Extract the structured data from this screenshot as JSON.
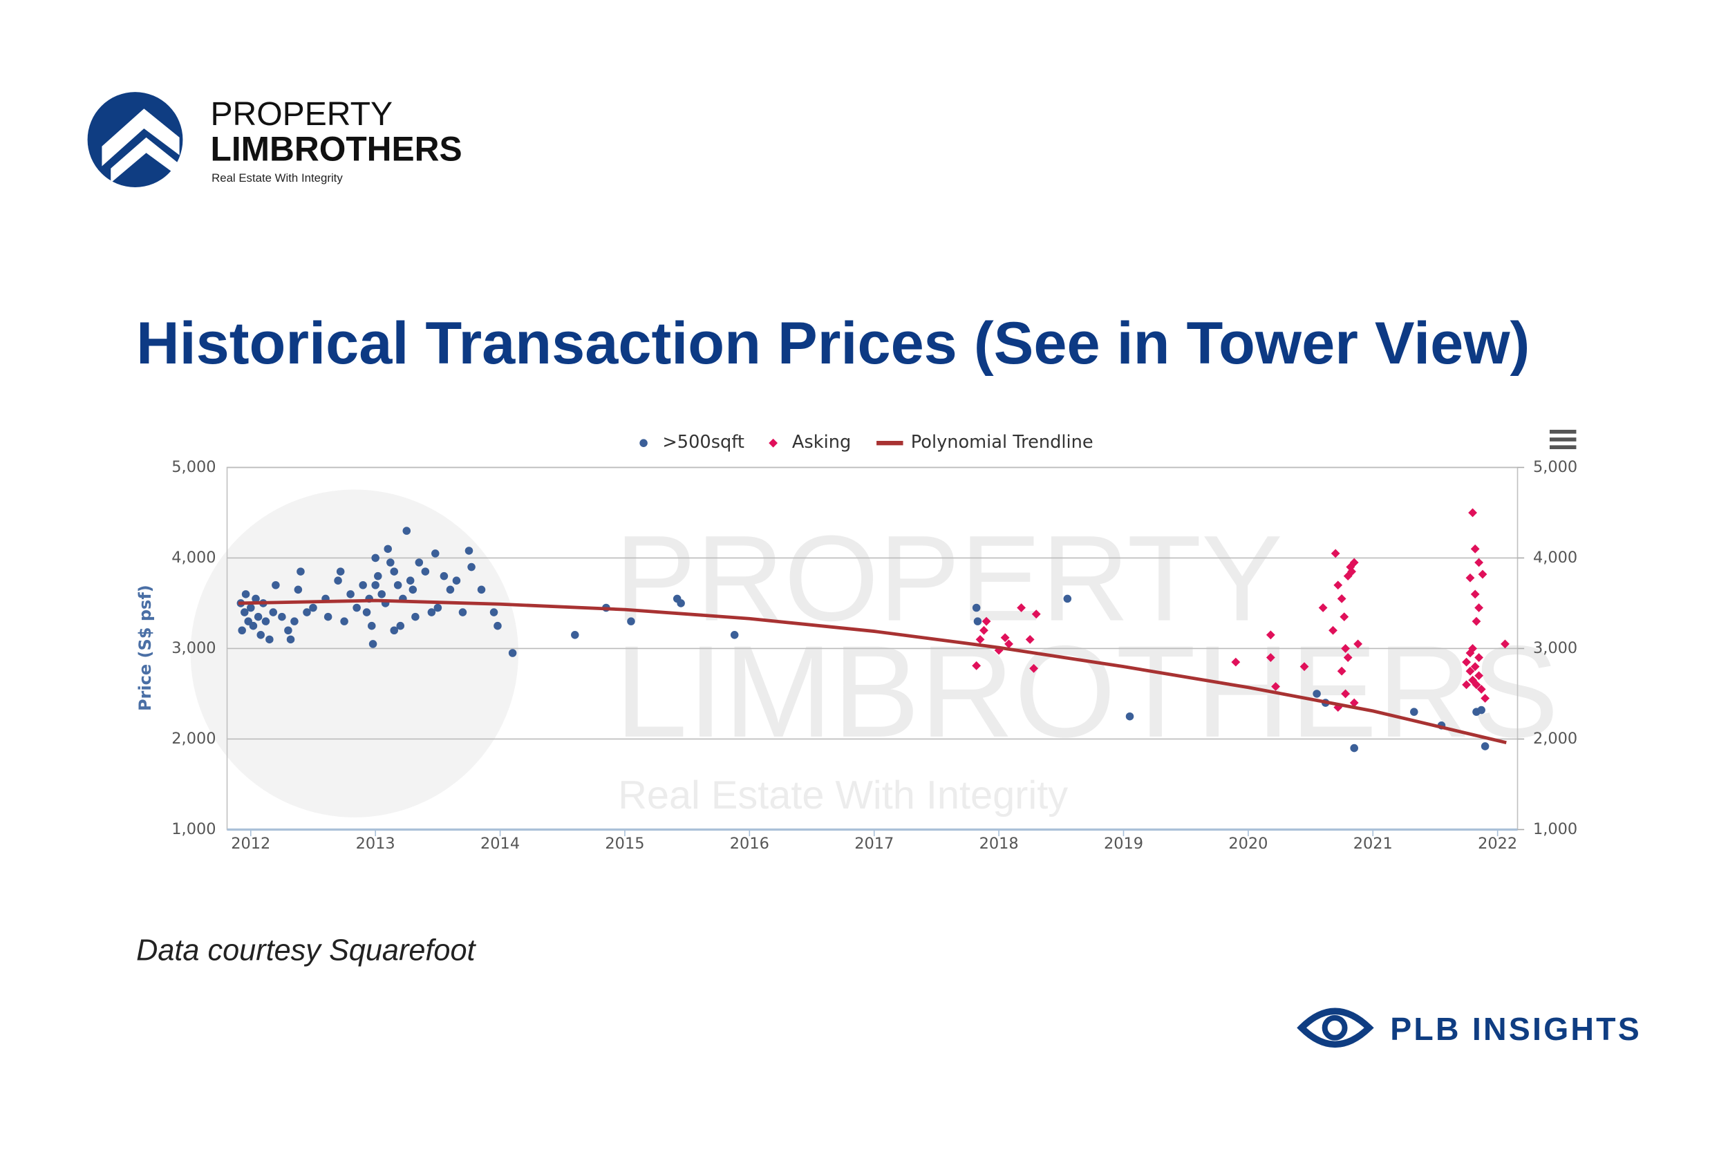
{
  "brand": {
    "line1": "PROPERTY",
    "line2": "LIMBROTHERS",
    "tagline": "Real Estate With Integrity"
  },
  "headline": "Historical Transaction Prices (See in Tower View)",
  "footnote": "Data courtesy Squarefoot",
  "footer": "PLB INSIGHTS",
  "chart_data": {
    "type": "scatter",
    "watermark": {
      "line1": "PROPERTY",
      "line2": "LIMBROTHERS",
      "tagline": "Real Estate With Integrity"
    },
    "ylabel": "Price (S$ psf)",
    "xlim": [
      2011.81,
      2022.16
    ],
    "xticks": [
      2012,
      2013,
      2014,
      2015,
      2016,
      2017,
      2018,
      2019,
      2020,
      2021,
      2022
    ],
    "ylim": [
      1000,
      5000
    ],
    "yticks": [
      {
        "value": 1000,
        "label": "1,000"
      },
      {
        "value": 2000,
        "label": "2,000"
      },
      {
        "value": 3000,
        "label": "3,000"
      },
      {
        "value": 4000,
        "label": "4,000"
      },
      {
        "value": 5000,
        "label": "5,000"
      }
    ],
    "y2lim": [
      1000,
      5000
    ],
    "y2ticks": [
      {
        "value": 1000,
        "label": "1,000"
      },
      {
        "value": 2000,
        "label": "2,000"
      },
      {
        "value": 3000,
        "label": "3,000"
      },
      {
        "value": 4000,
        "label": "4,000"
      },
      {
        "value": 5000,
        "label": "5,000"
      }
    ],
    "grid": true,
    "legend": "top",
    "series": [
      {
        "name": ">500sqft",
        "color": "#3b5f98",
        "marker": "circle",
        "x": [
          2011.92,
          2011.93,
          2011.95,
          2011.96,
          2011.98,
          2012.0,
          2012.02,
          2012.04,
          2012.06,
          2012.08,
          2012.1,
          2012.12,
          2012.15,
          2012.18,
          2012.2,
          2012.25,
          2012.3,
          2012.32,
          2012.35,
          2012.38,
          2012.4,
          2012.45,
          2012.5,
          2012.6,
          2012.62,
          2012.7,
          2012.72,
          2012.75,
          2012.8,
          2012.85,
          2012.9,
          2012.93,
          2012.95,
          2012.97,
          2013.0,
          2013.0,
          2013.02,
          2013.05,
          2013.08,
          2013.1,
          2013.12,
          2013.15,
          2013.18,
          2013.2,
          2013.15,
          2012.98,
          2013.22,
          2013.25,
          2013.28,
          2013.3,
          2013.32,
          2013.35,
          2013.4,
          2013.45,
          2013.48,
          2013.5,
          2013.55,
          2013.6,
          2013.65,
          2013.7,
          2013.75,
          2013.77,
          2013.85,
          2013.95,
          2013.98,
          2014.1,
          2014.6,
          2014.85,
          2015.05,
          2015.42,
          2015.45,
          2015.88,
          2017.82,
          2017.83,
          2018.55,
          2019.05,
          2020.55,
          2020.62,
          2020.85,
          2021.33,
          2021.55,
          2021.83,
          2021.87,
          2021.9
        ],
        "values": [
          3500,
          3200,
          3400,
          3600,
          3300,
          3450,
          3250,
          3550,
          3350,
          3150,
          3500,
          3300,
          3100,
          3400,
          3700,
          3350,
          3200,
          3100,
          3300,
          3650,
          3850,
          3400,
          3450,
          3550,
          3350,
          3750,
          3850,
          3300,
          3600,
          3450,
          3700,
          3400,
          3550,
          3250,
          3700,
          4000,
          3800,
          3600,
          3500,
          4100,
          3950,
          3850,
          3700,
          3250,
          3200,
          3050,
          3550,
          4300,
          3750,
          3650,
          3350,
          3950,
          3850,
          3400,
          4050,
          3450,
          3800,
          3650,
          3750,
          3400,
          4080,
          3900,
          3650,
          3400,
          3250,
          2950,
          3150,
          3450,
          3300,
          3550,
          3500,
          3150,
          3450,
          3300,
          3550,
          2250,
          2500,
          2400,
          1900,
          2300,
          2150,
          2300,
          2320,
          1920
        ]
      },
      {
        "name": "Asking",
        "color": "#e0105a",
        "marker": "diamond",
        "x": [
          2017.82,
          2017.85,
          2017.88,
          2017.9,
          2018.0,
          2018.05,
          2018.08,
          2018.18,
          2018.25,
          2018.3,
          2018.28,
          2019.9,
          2020.18,
          2020.18,
          2020.22,
          2020.45,
          2020.6,
          2020.7,
          2020.72,
          2020.75,
          2020.77,
          2020.68,
          2020.78,
          2020.8,
          2020.82,
          2020.85,
          2020.83,
          2020.8,
          2020.75,
          2020.78,
          2020.72,
          2020.85,
          2020.88,
          2021.8,
          2021.82,
          2021.85,
          2021.88,
          2021.78,
          2021.82,
          2021.85,
          2021.83,
          2021.8,
          2021.78,
          2021.75,
          2021.82,
          2021.85,
          2021.8,
          2021.83,
          2021.87,
          2021.78,
          2021.85,
          2021.9,
          2021.75,
          2022.06
        ],
        "values": [
          2810,
          3100,
          3200,
          3300,
          2980,
          3120,
          3050,
          3450,
          3100,
          3380,
          2780,
          2850,
          3150,
          2900,
          2580,
          2800,
          3450,
          4050,
          3700,
          3550,
          3350,
          3200,
          3000,
          3800,
          3900,
          3950,
          3850,
          2900,
          2750,
          2500,
          2350,
          2400,
          3050,
          4500,
          4100,
          3950,
          3820,
          3780,
          3600,
          3450,
          3300,
          3000,
          2950,
          2850,
          2800,
          2700,
          2650,
          2600,
          2550,
          2750,
          2900,
          2450,
          2600,
          3050
        ]
      },
      {
        "name": "Polynomial Trendline",
        "color": "#a83232",
        "type": "line",
        "x": [
          2011.9,
          2013,
          2014,
          2015,
          2016,
          2017,
          2018,
          2019,
          2020,
          2021,
          2022.07
        ],
        "values": [
          3500,
          3530,
          3490,
          3430,
          3330,
          3190,
          3010,
          2800,
          2570,
          2310,
          1960
        ]
      }
    ]
  }
}
